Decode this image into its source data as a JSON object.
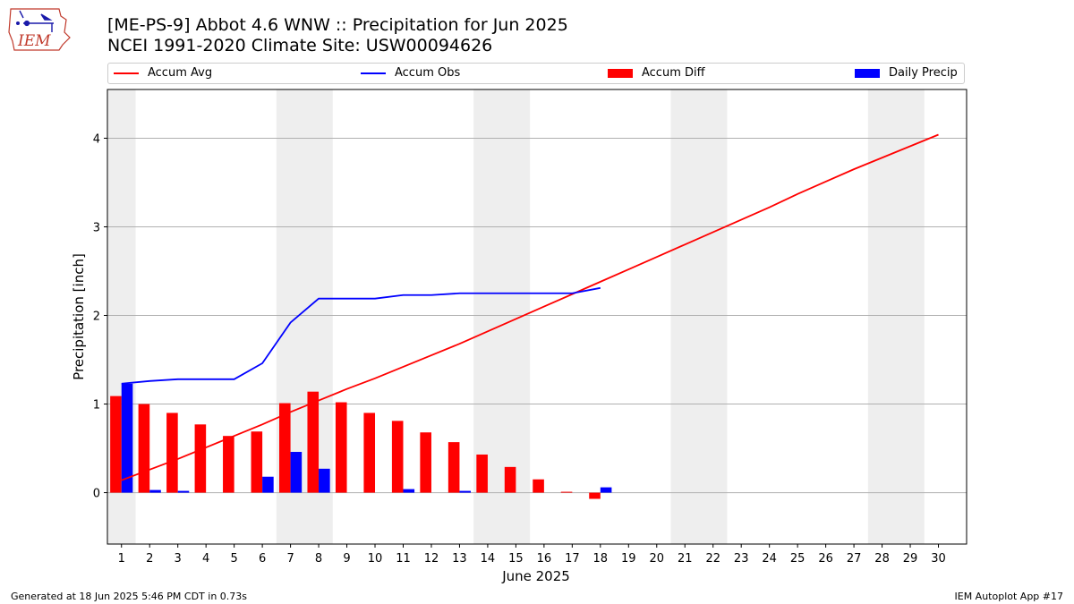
{
  "header": {
    "logo_text": "IEM",
    "title": "[ME-PS-9] Abbot 4.6 WNW :: Precipitation for Jun 2025",
    "subtitle": "NCEI 1991-2020 Climate Site: USW00094626"
  },
  "footer": {
    "generated": "Generated at 18 Jun 2025 5:46 PM CDT in 0.73s",
    "app": "IEM Autoplot App #17"
  },
  "colors": {
    "avg": "#ff0000",
    "obs": "#0000ff",
    "diff": "#ff0000",
    "daily": "#0000ff",
    "weekend_shade": "#eeeeee",
    "grid": "#b0b0b0"
  },
  "chart_data": {
    "type": "bar",
    "xlabel": "June 2025",
    "ylabel": "Precipitation [inch]",
    "ylim": [
      -0.58,
      4.55
    ],
    "yticks": [
      0,
      1,
      2,
      3,
      4
    ],
    "xlim": [
      0.5,
      31.0
    ],
    "categories": [
      1,
      2,
      3,
      4,
      5,
      6,
      7,
      8,
      9,
      10,
      11,
      12,
      13,
      14,
      15,
      16,
      17,
      18,
      19,
      20,
      21,
      22,
      23,
      24,
      25,
      26,
      27,
      28,
      29,
      30
    ],
    "legend": {
      "placement": "top",
      "entries": [
        "Accum Avg",
        "Accum Obs",
        "Accum Diff",
        "Daily Precip"
      ]
    },
    "grid": {
      "y": true,
      "x": false
    },
    "shaded_day_ranges": [
      [
        0.5,
        1.5
      ],
      [
        6.5,
        8.5
      ],
      [
        13.5,
        15.5
      ],
      [
        20.5,
        22.5
      ],
      [
        27.5,
        29.5
      ]
    ],
    "series": [
      {
        "name": "Accum Avg",
        "kind": "line",
        "x": [
          1,
          2,
          3,
          4,
          5,
          6,
          7,
          8,
          9,
          10,
          11,
          12,
          13,
          14,
          15,
          16,
          17,
          18,
          19,
          20,
          21,
          22,
          23,
          24,
          25,
          26,
          27,
          28,
          29,
          30
        ],
        "values": [
          0.14,
          0.26,
          0.38,
          0.51,
          0.64,
          0.77,
          0.91,
          1.04,
          1.17,
          1.29,
          1.42,
          1.55,
          1.68,
          1.82,
          1.96,
          2.1,
          2.24,
          2.38,
          2.52,
          2.66,
          2.8,
          2.94,
          3.08,
          3.22,
          3.37,
          3.51,
          3.65,
          3.78,
          3.91,
          4.04
        ]
      },
      {
        "name": "Accum Obs",
        "kind": "line",
        "x": [
          1,
          2,
          3,
          4,
          5,
          6,
          7,
          8,
          9,
          10,
          11,
          12,
          13,
          14,
          15,
          16,
          17,
          18
        ],
        "values": [
          1.23,
          1.26,
          1.28,
          1.28,
          1.28,
          1.46,
          1.92,
          2.19,
          2.19,
          2.19,
          2.23,
          2.23,
          2.25,
          2.25,
          2.25,
          2.25,
          2.25,
          2.31
        ]
      },
      {
        "name": "Accum Diff",
        "kind": "bar",
        "x": [
          1,
          2,
          3,
          4,
          5,
          6,
          7,
          8,
          9,
          10,
          11,
          12,
          13,
          14,
          15,
          16,
          17,
          18
        ],
        "values": [
          1.09,
          1.0,
          0.9,
          0.77,
          0.64,
          0.69,
          1.01,
          1.14,
          1.02,
          0.9,
          0.81,
          0.68,
          0.57,
          0.43,
          0.29,
          0.15,
          0.01,
          -0.07
        ]
      },
      {
        "name": "Daily Precip",
        "kind": "bar",
        "x": [
          1,
          2,
          3,
          4,
          5,
          6,
          7,
          8,
          9,
          10,
          11,
          12,
          13,
          14,
          15,
          16,
          17,
          18
        ],
        "values": [
          1.23,
          0.03,
          0.02,
          0.0,
          0.0,
          0.18,
          0.46,
          0.27,
          0.0,
          0.0,
          0.04,
          0.0,
          0.02,
          0.0,
          0.0,
          0.0,
          0.0,
          0.06
        ]
      }
    ]
  }
}
